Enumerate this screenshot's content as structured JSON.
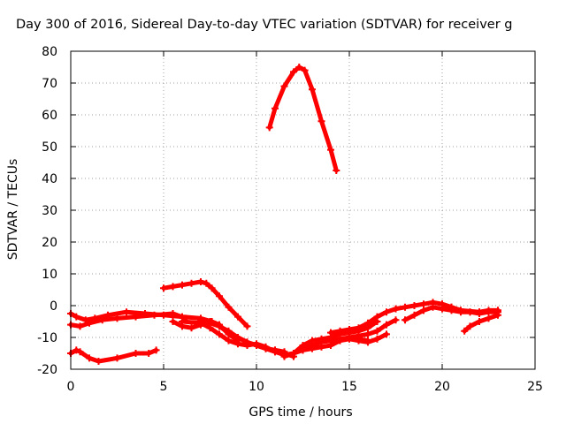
{
  "chart_data": {
    "type": "scatter",
    "title": "Day 300 of 2016, Sidereal Day-to-day VTEC variation (SDTVAR) for receiver g",
    "xlabel": "GPS time / hours",
    "ylabel": "SDTVAR / TECUs",
    "xlim": [
      0,
      25
    ],
    "ylim": [
      -20,
      80
    ],
    "xticks": [
      "0",
      "5",
      "10",
      "15",
      "20",
      "25"
    ],
    "yticks": [
      "-20",
      "-10",
      "0",
      "10",
      "20",
      "30",
      "40",
      "50",
      "60",
      "70",
      "80"
    ],
    "grid": true,
    "legend": "none",
    "series_color": "#ff0000",
    "series": [
      {
        "x": [
          0.0,
          0.3,
          0.8,
          1.3,
          2.0,
          3.0,
          4.0,
          5.0,
          6.0,
          7.0,
          7.6,
          8.0,
          8.5,
          9.0
        ],
        "y": [
          -2.5,
          -3.5,
          -4.5,
          -4.0,
          -3.0,
          -2.0,
          -2.5,
          -3.0,
          -3.5,
          -4.0,
          -5.0,
          -6.0,
          -9.0,
          -11.0
        ]
      },
      {
        "x": [
          0.0,
          0.5,
          1.0,
          1.7,
          2.5,
          3.5,
          4.5,
          5.5,
          6.2
        ],
        "y": [
          -6.0,
          -6.5,
          -5.5,
          -4.5,
          -4.0,
          -3.5,
          -3.0,
          -2.5,
          -4.0
        ]
      },
      {
        "x": [
          0.0,
          0.3,
          0.5,
          1.0,
          1.5,
          2.5,
          3.5,
          4.2,
          4.6
        ],
        "y": [
          -15.0,
          -14.0,
          -14.5,
          -16.5,
          -17.5,
          -16.5,
          -15.0,
          -15.0,
          -14.0
        ]
      },
      {
        "x": [
          5.0,
          5.5,
          6.0,
          6.5,
          7.0,
          7.3,
          7.6,
          8.0,
          8.5,
          9.0,
          9.5
        ],
        "y": [
          5.5,
          6.0,
          6.5,
          7.0,
          7.5,
          7.0,
          5.5,
          3.0,
          -0.5,
          -3.5,
          -6.5
        ]
      },
      {
        "x": [
          5.5,
          6.0,
          6.5,
          7.0,
          7.5,
          8.0,
          8.5,
          9.0,
          9.5,
          10.0,
          10.5,
          11.0,
          11.5
        ],
        "y": [
          -5.0,
          -6.5,
          -7.0,
          -6.0,
          -5.5,
          -6.5,
          -8.0,
          -10.0,
          -11.5,
          -12.5,
          -13.5,
          -14.0,
          -14.5
        ]
      },
      {
        "x": [
          6.0,
          7.0,
          7.5,
          8.0,
          8.5,
          9.0,
          9.5,
          10.0,
          10.5,
          11.0
        ],
        "y": [
          -5.0,
          -5.5,
          -7.0,
          -9.0,
          -11.0,
          -12.0,
          -12.5,
          -12.0,
          -13.0,
          -14.5
        ]
      },
      {
        "x": [
          7.0,
          7.5,
          8.0,
          8.5,
          9.0,
          9.5,
          10.0,
          10.5,
          11.0,
          11.5,
          12.0
        ],
        "y": [
          -4.5,
          -5.0,
          -6.5,
          -8.5,
          -10.0,
          -11.5,
          -12.5,
          -13.5,
          -14.0,
          -15.0,
          -16.0
        ]
      },
      {
        "x": [
          10.7,
          11.0,
          11.5,
          12.0,
          12.3,
          12.6,
          13.0,
          13.5,
          14.0,
          14.3
        ],
        "y": [
          56.0,
          62.0,
          69.0,
          73.5,
          75.0,
          74.0,
          68.0,
          58.0,
          49.0,
          42.5
        ]
      },
      {
        "x": [
          10.5,
          11.0,
          11.5,
          12.0,
          12.5,
          13.0,
          13.5,
          14.0,
          14.5,
          15.0,
          15.5,
          16.0,
          16.5
        ],
        "y": [
          -13.5,
          -14.5,
          -15.5,
          -15.0,
          -12.5,
          -11.0,
          -10.5,
          -10.0,
          -9.0,
          -8.5,
          -8.0,
          -7.0,
          -5.0
        ]
      },
      {
        "x": [
          11.5,
          12.0,
          12.5,
          13.0,
          13.5,
          14.0,
          14.5,
          15.0,
          15.5,
          16.0
        ],
        "y": [
          -16.0,
          -15.0,
          -14.0,
          -12.5,
          -11.5,
          -11.0,
          -10.5,
          -10.0,
          -10.5,
          -11.0
        ]
      },
      {
        "x": [
          12.5,
          13.0,
          13.5,
          14.0,
          14.5,
          15.0,
          15.5,
          16.0,
          16.5,
          17.0
        ],
        "y": [
          -14.0,
          -13.5,
          -13.0,
          -12.5,
          -11.0,
          -10.5,
          -11.0,
          -11.5,
          -10.5,
          -9.0
        ]
      },
      {
        "x": [
          14.0,
          14.5,
          15.0,
          15.5,
          16.0,
          16.5,
          17.0,
          17.5,
          18.0,
          18.5,
          19.0,
          19.5,
          20.0,
          20.5,
          21.0,
          22.0,
          23.0
        ],
        "y": [
          -8.5,
          -8.0,
          -7.5,
          -7.0,
          -5.5,
          -3.5,
          -2.0,
          -1.0,
          -0.5,
          0.0,
          0.5,
          1.0,
          0.5,
          -0.5,
          -1.5,
          -2.0,
          -2.0
        ]
      },
      {
        "x": [
          15.0,
          15.5,
          16.0,
          16.5,
          17.0,
          17.5
        ],
        "y": [
          -10.0,
          -9.5,
          -9.0,
          -8.0,
          -6.0,
          -4.5
        ]
      },
      {
        "x": [
          18.0,
          18.5,
          19.0,
          19.5,
          20.0,
          20.5,
          21.0,
          21.5,
          22.0,
          22.5,
          23.0
        ],
        "y": [
          -4.5,
          -3.0,
          -1.5,
          -0.5,
          -1.0,
          -1.5,
          -2.0,
          -2.0,
          -2.5,
          -2.0,
          -1.5
        ]
      },
      {
        "x": [
          20.0,
          20.5,
          21.0,
          21.5,
          22.0,
          22.5,
          23.0
        ],
        "y": [
          0.5,
          -0.5,
          -1.5,
          -2.0,
          -2.0,
          -1.5,
          -1.5
        ]
      },
      {
        "x": [
          21.2,
          21.5,
          22.0,
          22.5,
          23.0
        ],
        "y": [
          -8.0,
          -6.5,
          -5.0,
          -4.0,
          -3.0
        ]
      }
    ]
  }
}
